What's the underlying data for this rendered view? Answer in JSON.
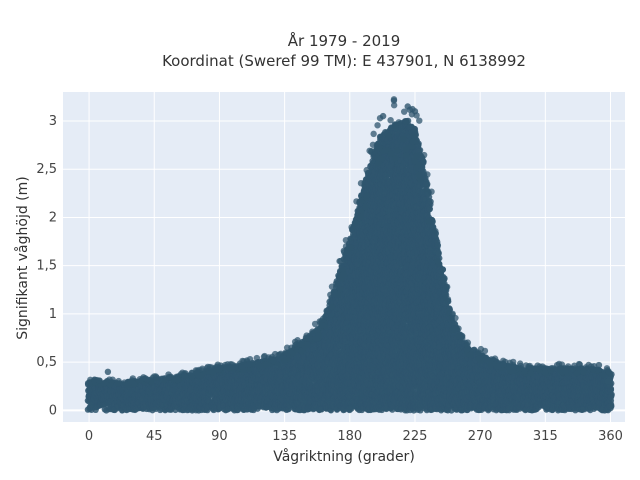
{
  "chart_data": {
    "type": "scatter",
    "title": "År 1979 - 2019",
    "subtitle": "Koordinat (Sweref 99 TM): E 437901, N 6138992",
    "xlabel": "Vågriktning (grader)",
    "ylabel": "Signifikant våghöjd (m)",
    "xlim": [
      -18,
      370
    ],
    "ylim": [
      -0.12,
      3.3
    ],
    "x_ticks": [
      0,
      45,
      90,
      135,
      180,
      225,
      270,
      315,
      360
    ],
    "x_tick_labels": [
      "0",
      "45",
      "90",
      "135",
      "180",
      "225",
      "270",
      "315",
      "360"
    ],
    "y_ticks": [
      0,
      0.5,
      1,
      1.5,
      2,
      2.5,
      3
    ],
    "y_tick_labels": [
      "0",
      "0,5",
      "1",
      "1,5",
      "2",
      "2,5",
      "3"
    ],
    "grid": true,
    "legend": "none",
    "marker_color": "#2f566e",
    "plot_bg": "#e5ecf6",
    "envelope": {
      "description_values": "upper envelope of the point cloud (wave direction in degrees, height in m)",
      "x": [
        0,
        20,
        45,
        70,
        90,
        110,
        130,
        145,
        160,
        170,
        180,
        190,
        200,
        210,
        220,
        225,
        230,
        240,
        250,
        260,
        270,
        285,
        300,
        315,
        330,
        345,
        360
      ],
      "upper": [
        0.3,
        0.3,
        0.33,
        0.38,
        0.45,
        0.5,
        0.55,
        0.7,
        0.9,
        1.3,
        1.8,
        2.4,
        2.9,
        3.05,
        3.1,
        3.0,
        2.7,
        1.8,
        1.0,
        0.7,
        0.6,
        0.5,
        0.45,
        0.45,
        0.45,
        0.45,
        0.4
      ]
    },
    "notable_points": [
      {
        "x": 203,
        "y": 3.05
      },
      {
        "x": 220,
        "y": 3.15
      },
      {
        "x": 225,
        "y": 3.1
      },
      {
        "x": 13,
        "y": 0.4
      },
      {
        "x": 352,
        "y": 0.47
      },
      {
        "x": 358,
        "y": 0.3
      }
    ]
  }
}
